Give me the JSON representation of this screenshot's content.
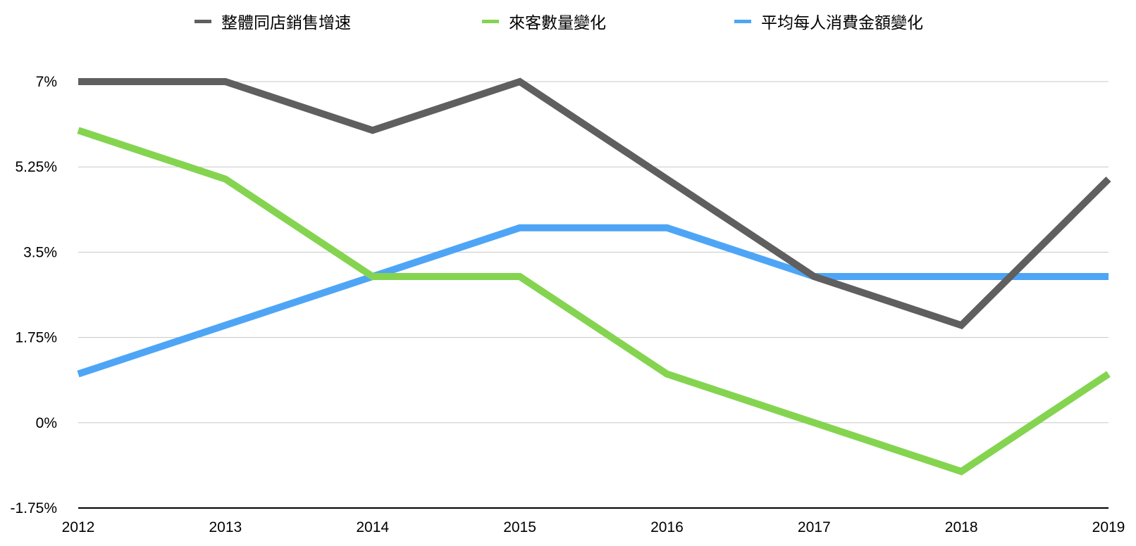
{
  "chart_data": {
    "type": "line",
    "title": "",
    "xlabel": "",
    "ylabel": "",
    "categories": [
      "2012",
      "2013",
      "2014",
      "2015",
      "2016",
      "2017",
      "2018",
      "2019"
    ],
    "y_ticks": [
      -1.75,
      0,
      1.75,
      3.5,
      5.25,
      7
    ],
    "y_tick_labels": [
      "-1.75%",
      "0%",
      "1.75%",
      "3.5%",
      "5.25%",
      "7%"
    ],
    "ylim": [
      -1.75,
      7
    ],
    "grid": "horizontal",
    "legend_position": "top",
    "series": [
      {
        "name": "整體同店銷售增速",
        "color": "#5f5f5f",
        "values": [
          7,
          7,
          6,
          7,
          5,
          3,
          2,
          5
        ]
      },
      {
        "name": "來客數量變化",
        "color": "#84d450",
        "values": [
          6,
          5,
          3,
          3,
          1,
          0,
          -1,
          1
        ]
      },
      {
        "name": "平均每人消費金額變化",
        "color": "#4ea5f5",
        "values": [
          1,
          2,
          3,
          4,
          4,
          3,
          3,
          3
        ]
      }
    ]
  }
}
